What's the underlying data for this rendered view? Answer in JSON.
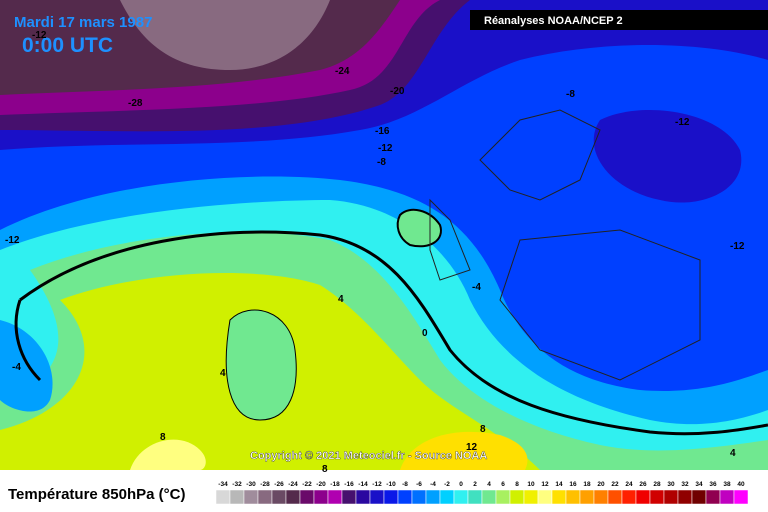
{
  "header": {
    "date": "Mardi 17 mars 1987",
    "time": "0:00 UTC",
    "source": "Réanalyses NOAA/NCEP 2"
  },
  "copyright": "Copyright © 2021 Meteociel.fr - Source NOAA",
  "contour_labels": [
    "-12",
    "-28",
    "-24",
    "-20",
    "-16",
    "-12",
    "-8",
    "-8",
    "-12",
    "-12",
    "-12",
    "-4",
    "4",
    "0",
    "4",
    "-4",
    "8",
    "8",
    "12",
    "8",
    "4"
  ],
  "legend": {
    "title": "Température 850hPa (°C)",
    "values": [
      -34,
      -32,
      -30,
      -28,
      -26,
      -24,
      -22,
      -20,
      -18,
      -16,
      -14,
      -12,
      -10,
      -8,
      -6,
      -4,
      -2,
      0,
      2,
      4,
      6,
      8,
      10,
      12,
      14,
      16,
      18,
      20,
      22,
      24,
      26,
      28,
      30,
      32,
      34,
      36,
      38,
      40
    ],
    "colors": [
      "#d8d8d8",
      "#b8b8b8",
      "#a08c9c",
      "#886a80",
      "#6a4a64",
      "#542a4c",
      "#6a0a6a",
      "#8c008c",
      "#b000b0",
      "#46106e",
      "#2a08a0",
      "#1a10c8",
      "#0a18e8",
      "#0040ff",
      "#0070ff",
      "#00a0ff",
      "#00d0ff",
      "#30f0f0",
      "#40e0c0",
      "#70e890",
      "#a8f060",
      "#d0f000",
      "#f0f000",
      "#ffff80",
      "#ffe000",
      "#ffc000",
      "#ffa000",
      "#ff8000",
      "#ff5000",
      "#ff2000",
      "#f00000",
      "#d00000",
      "#b00000",
      "#900000",
      "#700000",
      "#900050",
      "#c000c0",
      "#ff00ff"
    ]
  }
}
